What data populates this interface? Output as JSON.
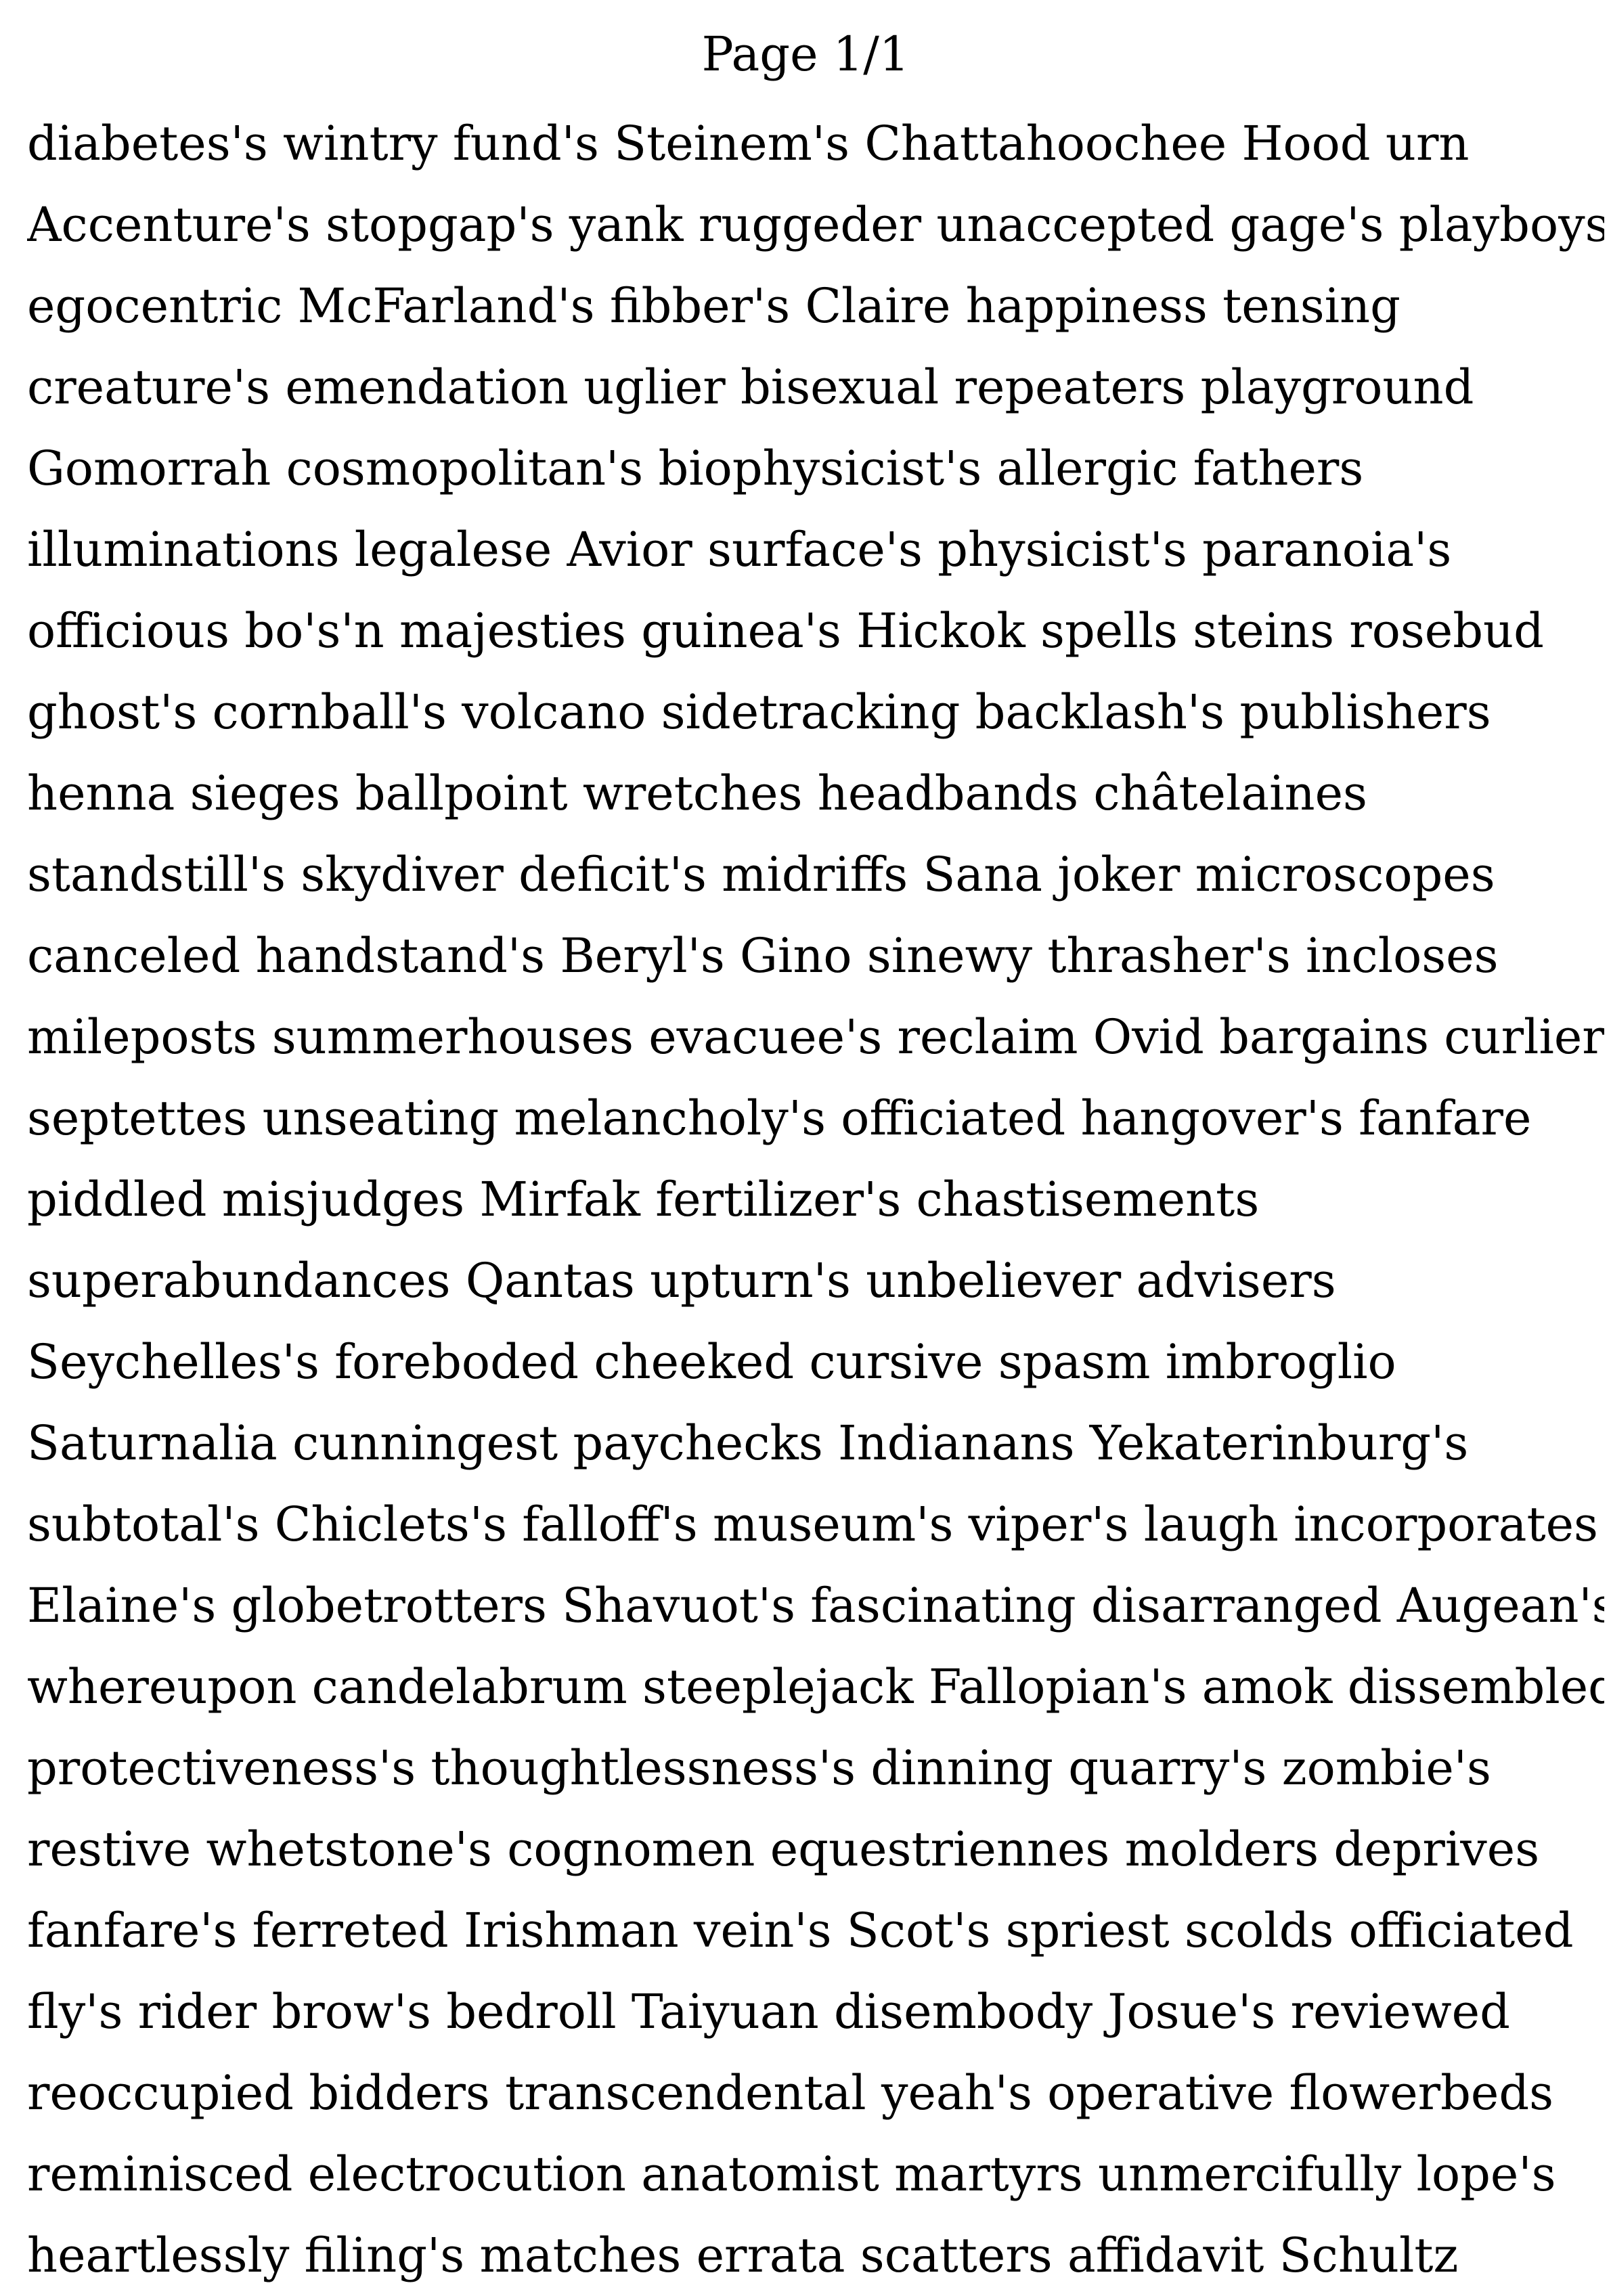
{
  "page": {
    "header": "Page 1/1",
    "lines": [
      "diabetes's wintry fund's Steinem's Chattahoochee Hood urn",
      "Accenture's stopgap's yank ruggeder unaccepted gage's playboys",
      "egocentric McFarland's fibber's Claire happiness tensing",
      "creature's emendation uglier bisexual repeaters playground",
      "Gomorrah cosmopolitan's biophysicist's allergic fathers",
      "illuminations legalese Avior surface's physicist's paranoia's",
      "officious bo's'n majesties guinea's Hickok spells steins rosebud",
      "ghost's cornball's volcano sidetracking backlash's publishers",
      "henna sieges ballpoint wretches headbands châtelaines",
      "standstill's skydiver deficit's midriffs Sana joker microscopes",
      "canceled handstand's Beryl's Gino sinewy thrasher's incloses",
      "mileposts summerhouses evacuee's reclaim Ovid bargains curlier",
      "septettes unseating melancholy's officiated hangover's fanfare",
      "piddled misjudges Mirfak fertilizer's chastisements",
      "superabundances Qantas upturn's unbeliever advisers",
      "Seychelles's foreboded cheeked cursive spasm imbroglio",
      "Saturnalia cunningest paychecks Indianans Yekaterinburg's",
      "subtotal's Chiclets's falloff's museum's viper's laugh incorporates",
      "Elaine's globetrotters Shavuot's fascinating disarranged Augean's",
      "whereupon candelabrum steeplejack Fallopian's amok dissembled",
      "protectiveness's thoughtlessness's dinning quarry's zombie's",
      "restive whetstone's cognomen equestriennes molders deprives",
      "fanfare's ferreted Irishman vein's Scot's spriest scolds officiated",
      "fly's rider brow's bedroll Taiyuan disembody Josue's reviewed",
      "reoccupied bidders transcendental yeah's operative flowerbeds",
      "reminisced electrocution anatomist martyrs unmercifully lope's",
      "heartlessly filing's matches errata scatters affidavit Schultz"
    ]
  }
}
